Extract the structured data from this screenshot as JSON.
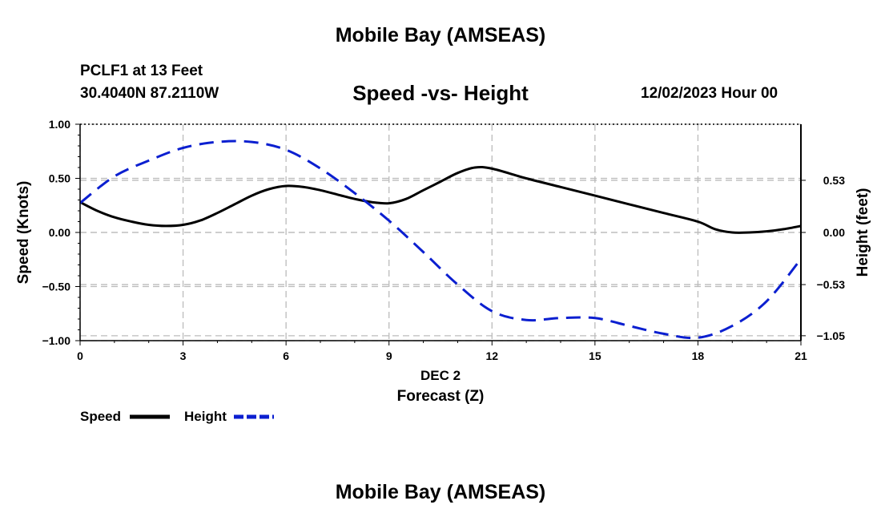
{
  "header": {
    "title": "Mobile Bay (AMSEAS)",
    "station": "PCLF1 at 13 Feet",
    "coords": "30.4040N  87.2110W",
    "subtitle": "Speed -vs- Height",
    "datetime": "12/02/2023 Hour 00"
  },
  "footer": {
    "title": "Mobile Bay (AMSEAS)"
  },
  "legend": {
    "speed": "Speed",
    "height": "Height"
  },
  "colors": {
    "speed": "#000000",
    "height": "#0b1fd0",
    "grid": "#bbbbbb"
  },
  "chart_data": {
    "type": "line",
    "xlabel": "Forecast (Z)",
    "xlabel_date": "DEC 2",
    "ylabel": "Speed (Knots)",
    "y2label": "Height (feet)",
    "xlim": [
      0,
      21
    ],
    "ylim": [
      -1.0,
      1.0
    ],
    "y2lim": [
      -1.1,
      1.1
    ],
    "x_ticks": [
      "0",
      "3",
      "6",
      "9",
      "12",
      "15",
      "18",
      "21"
    ],
    "y_ticks": [
      "1.00",
      "0.50",
      "0.00",
      "−0.50",
      "−1.00"
    ],
    "y2_ticks": [
      "0.53",
      "0.00",
      "−0.53",
      "−1.05"
    ],
    "y2_tick_values": [
      0.53,
      0.0,
      -0.53,
      -1.05
    ],
    "grid": true,
    "series": [
      {
        "name": "Speed",
        "style": "solid",
        "axis": "left",
        "x": [
          0,
          0.5,
          1,
          1.5,
          2,
          2.5,
          3,
          3.5,
          4,
          4.5,
          5,
          5.5,
          6,
          6.5,
          7,
          7.5,
          8,
          8.5,
          9,
          9.5,
          10,
          10.5,
          11,
          11.5,
          12,
          13,
          14,
          15,
          16,
          17,
          18,
          18.5,
          19,
          19.5,
          20,
          20.5,
          21
        ],
        "values": [
          0.28,
          0.2,
          0.14,
          0.1,
          0.07,
          0.06,
          0.07,
          0.11,
          0.18,
          0.26,
          0.34,
          0.4,
          0.43,
          0.42,
          0.39,
          0.35,
          0.31,
          0.28,
          0.27,
          0.31,
          0.39,
          0.47,
          0.55,
          0.6,
          0.59,
          0.5,
          0.42,
          0.34,
          0.26,
          0.18,
          0.1,
          0.03,
          0.0,
          0.0,
          0.01,
          0.03,
          0.06
        ]
      },
      {
        "name": "Height",
        "style": "dashed",
        "axis": "right",
        "x": [
          0,
          1,
          2,
          3,
          4,
          5,
          6,
          7,
          8,
          9,
          10,
          11,
          12,
          13,
          14,
          15,
          16,
          17,
          18,
          19,
          20,
          21
        ],
        "values": [
          0.3,
          0.57,
          0.73,
          0.86,
          0.92,
          0.92,
          0.84,
          0.65,
          0.4,
          0.12,
          -0.2,
          -0.53,
          -0.8,
          -0.89,
          -0.87,
          -0.87,
          -0.95,
          -1.03,
          -1.07,
          -0.95,
          -0.7,
          -0.27
        ]
      }
    ]
  }
}
